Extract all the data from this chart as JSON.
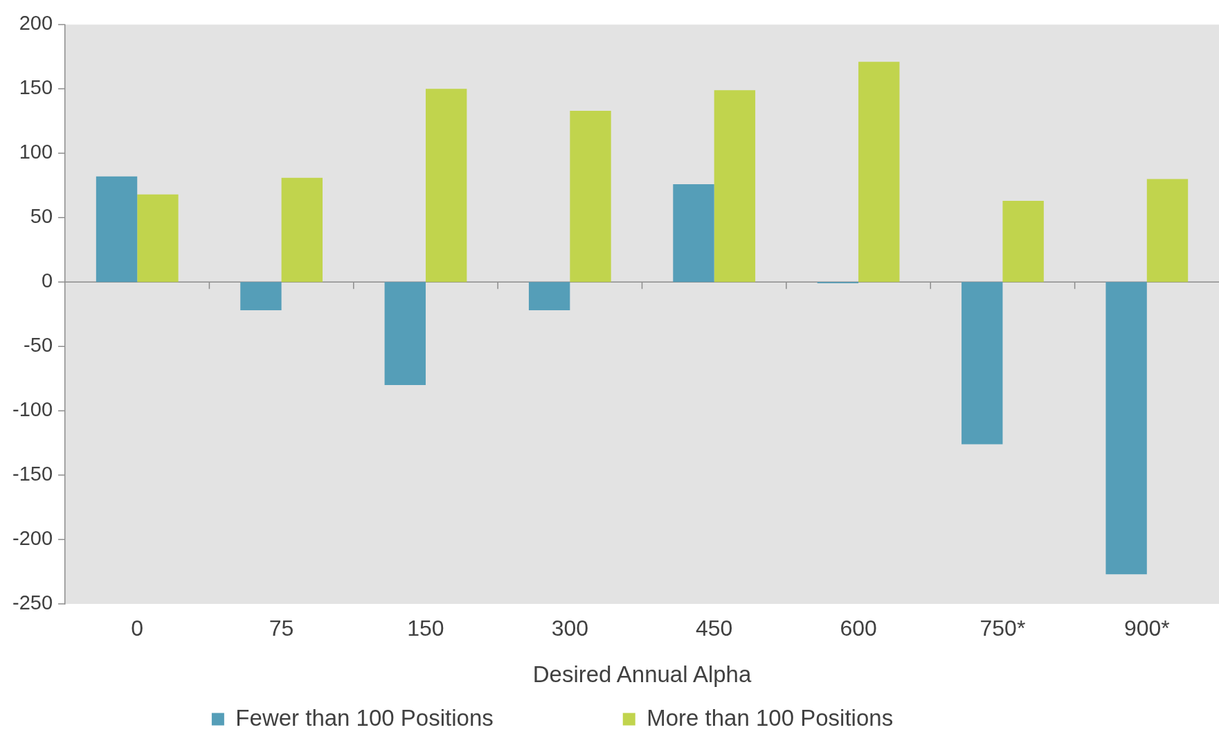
{
  "chart_data": {
    "type": "bar",
    "xlabel": "Desired Annual Alpha",
    "categories": [
      "0",
      "75",
      "150",
      "300",
      "450",
      "600",
      "750*",
      "900*"
    ],
    "series": [
      {
        "name": "Fewer than 100 Positions",
        "color": "#559eb8",
        "values": [
          82,
          -22,
          -80,
          -22,
          76,
          -1,
          -126,
          -227
        ]
      },
      {
        "name": "More than 100 Positions",
        "color": "#c1d44d",
        "values": [
          68,
          81,
          150,
          133,
          149,
          171,
          63,
          80
        ]
      }
    ],
    "ylim": [
      -250,
      200
    ],
    "yticks": [
      -250,
      -200,
      -150,
      -100,
      -50,
      0,
      50,
      100,
      150,
      200
    ],
    "ref_lines": [
      {
        "axis": "y",
        "value": 0,
        "color": "#8c8c8c"
      }
    ],
    "grid": false,
    "legend": "bottom"
  }
}
